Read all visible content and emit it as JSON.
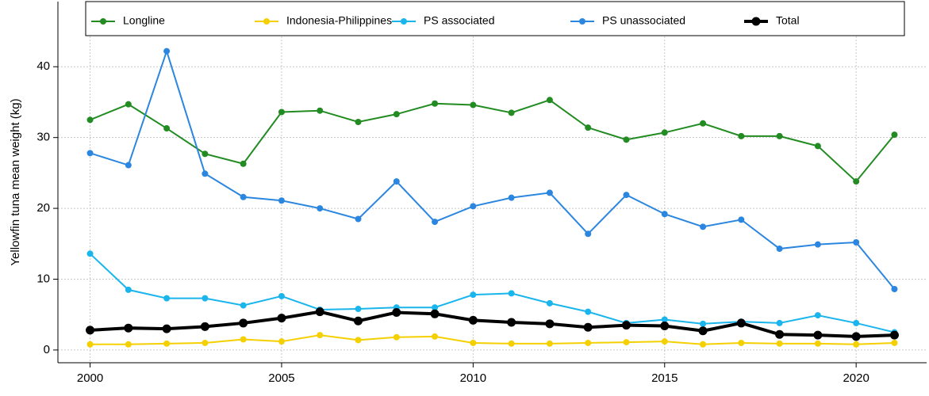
{
  "chart_data": {
    "type": "line",
    "ylabel": "Yellowfin tuna mean weight (kg)",
    "x": [
      2000,
      2001,
      2002,
      2003,
      2004,
      2005,
      2006,
      2007,
      2008,
      2009,
      2010,
      2011,
      2012,
      2013,
      2014,
      2015,
      2016,
      2017,
      2018,
      2019,
      2020,
      2021
    ],
    "series": [
      {
        "name": "Longline",
        "color": "#228b22",
        "width": 2,
        "values": [
          32.5,
          34.7,
          31.3,
          27.7,
          26.3,
          33.6,
          33.8,
          32.2,
          33.3,
          34.8,
          34.6,
          33.5,
          35.3,
          31.4,
          29.7,
          30.7,
          32.0,
          30.2,
          30.2,
          28.8,
          23.8,
          30.4
        ]
      },
      {
        "name": "Indonesia-Philippines",
        "color": "#f5d000",
        "width": 2,
        "values": [
          0.8,
          0.8,
          0.9,
          1.0,
          1.5,
          1.2,
          2.1,
          1.4,
          1.8,
          1.9,
          1.0,
          0.9,
          0.9,
          1.0,
          1.1,
          1.2,
          0.8,
          1.0,
          0.9,
          0.9,
          0.8,
          1.0
        ]
      },
      {
        "name": "PS associated",
        "color": "#19b5ec",
        "width": 2,
        "values": [
          13.6,
          8.5,
          7.3,
          7.3,
          6.3,
          7.6,
          5.7,
          5.8,
          6.0,
          6.0,
          7.8,
          8.0,
          6.6,
          5.4,
          3.8,
          4.3,
          3.7,
          4.0,
          3.8,
          4.9,
          3.8,
          2.5
        ]
      },
      {
        "name": "PS unassociated",
        "color": "#2b86df",
        "width": 2,
        "values": [
          27.8,
          26.1,
          42.2,
          24.9,
          21.6,
          21.1,
          20.0,
          18.5,
          23.8,
          18.1,
          20.3,
          21.5,
          22.2,
          16.4,
          21.9,
          19.2,
          17.4,
          18.4,
          14.3,
          14.9,
          15.2,
          8.6
        ]
      },
      {
        "name": "Total",
        "color": "#000000",
        "width": 4,
        "values": [
          2.8,
          3.1,
          3.0,
          3.3,
          3.8,
          4.5,
          5.4,
          4.1,
          5.3,
          5.1,
          4.2,
          3.9,
          3.7,
          3.2,
          3.5,
          3.4,
          2.7,
          3.8,
          2.2,
          2.1,
          1.9,
          2.1
        ]
      }
    ],
    "xlim": [
      1999.16,
      2021.84
    ],
    "xticks": [
      2000,
      2005,
      2010,
      2015,
      2020
    ],
    "ylim": [
      -1.8,
      49.2
    ],
    "yticks": [
      0,
      10,
      20,
      30,
      40
    ],
    "grid": true,
    "legend": "top"
  }
}
